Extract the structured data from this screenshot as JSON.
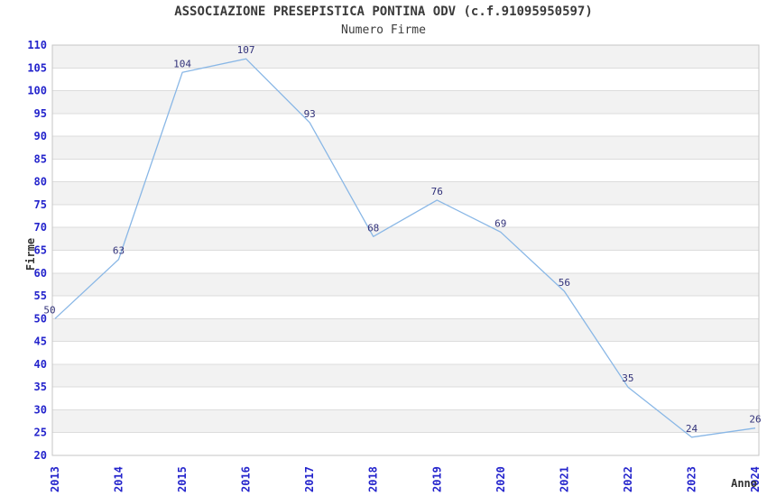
{
  "chart_data": {
    "type": "line",
    "title": "ASSOCIAZIONE PRESEPISTICA PONTINA ODV (c.f.91095950597)",
    "subtitle": "Numero Firme",
    "categories": [
      "2013",
      "2014",
      "2015",
      "2016",
      "2017",
      "2018",
      "2019",
      "2020",
      "2021",
      "2022",
      "2023",
      "2024"
    ],
    "series": [
      {
        "name": "Numero Firme",
        "values": [
          50,
          63,
          104,
          107,
          93,
          68,
          76,
          69,
          56,
          35,
          24,
          26
        ]
      }
    ],
    "xlabel": "Anno",
    "ylabel": "Firme",
    "ylim": [
      20,
      110
    ],
    "ytick_step": 5,
    "grid": "horizontal-alternating-bands",
    "legend_position": "none",
    "data_labels": true,
    "colors": {
      "line": "#89b7e6",
      "tick_labels": "#2424cc",
      "point_labels": "#32327a",
      "band_fill": "#f2f2f2",
      "gridline": "#dcdcdc",
      "plot_border": "#c6c6c6",
      "title_text": "#3a3a3a"
    }
  }
}
